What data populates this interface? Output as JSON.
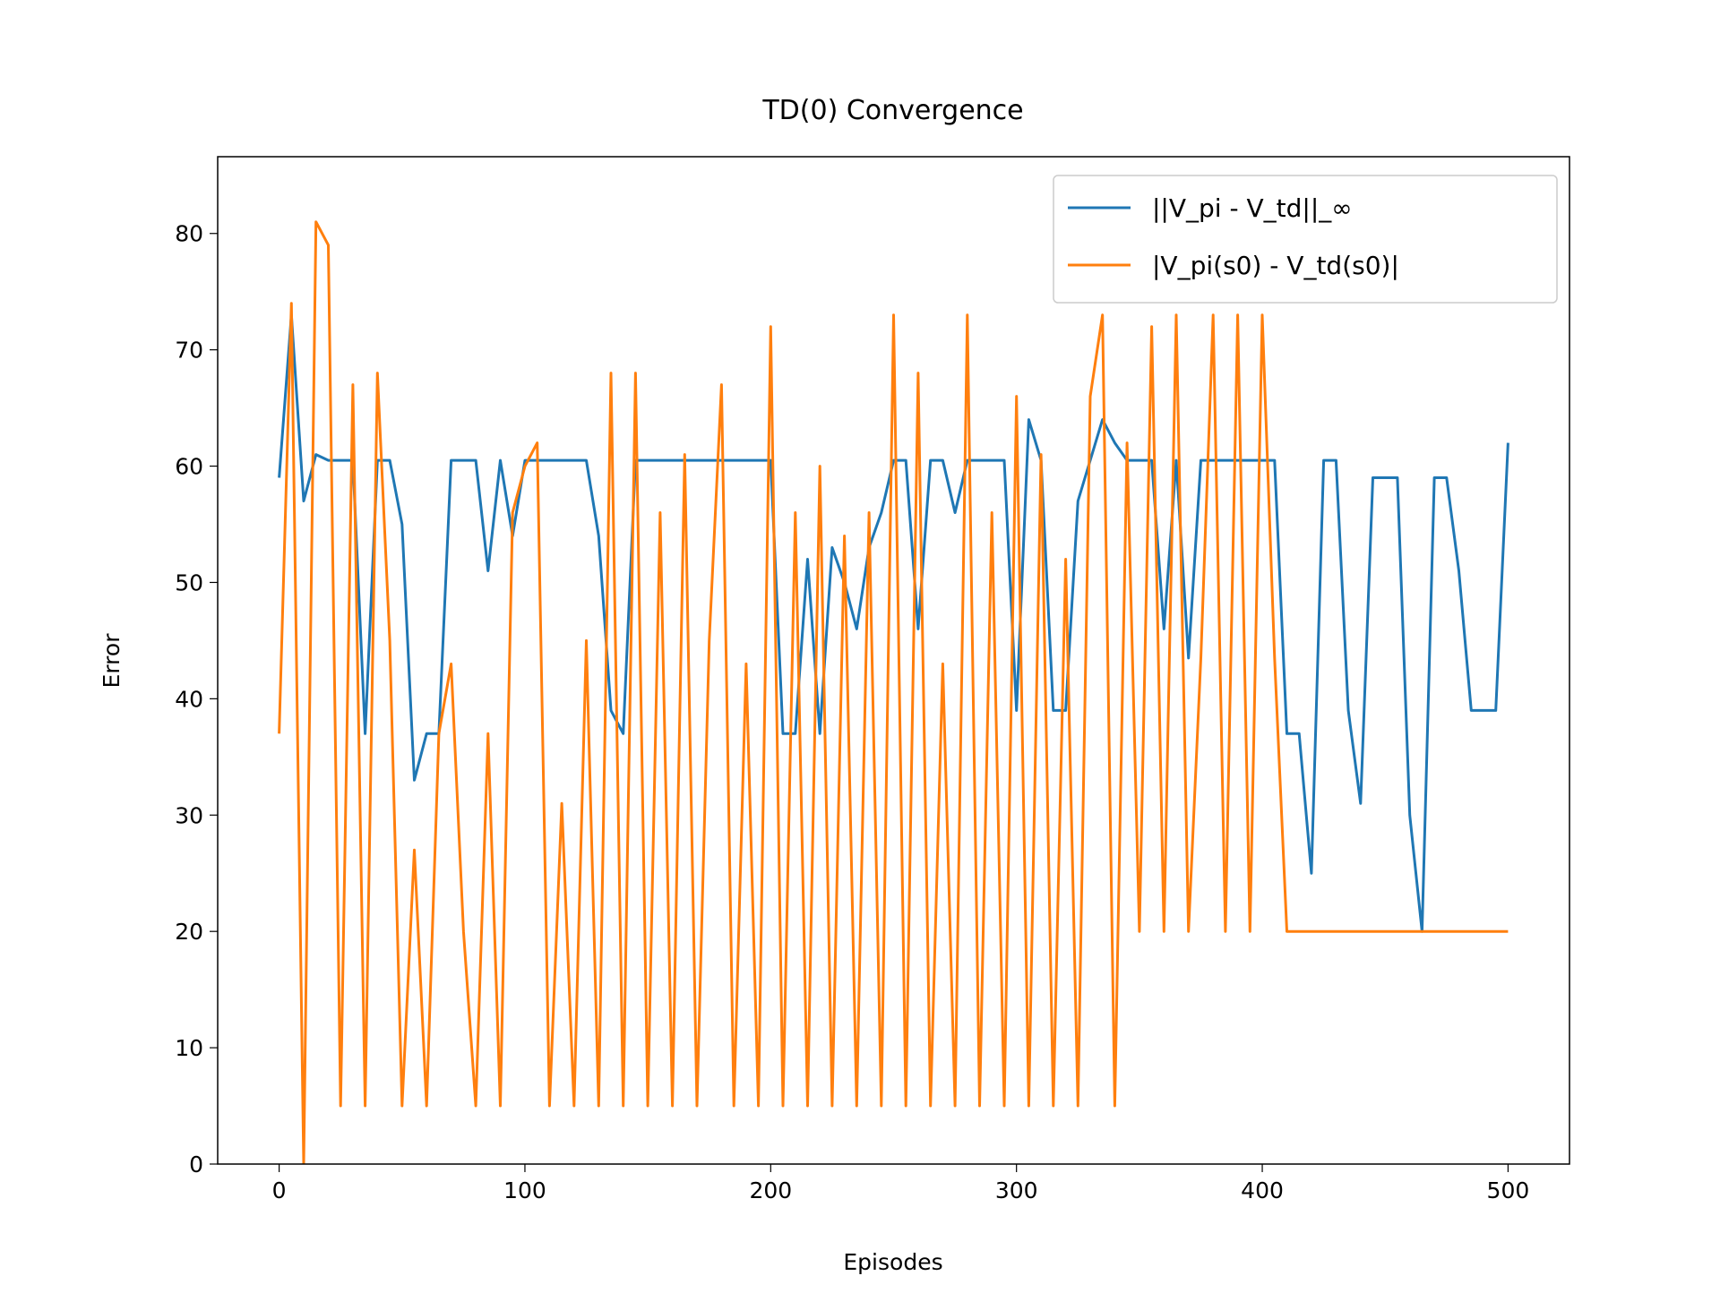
{
  "chart_data": {
    "type": "line",
    "title": "TD(0) Convergence",
    "x_label": "Episodes",
    "y_label": "Error",
    "x": [
      0,
      5,
      10,
      15,
      20,
      25,
      30,
      35,
      40,
      45,
      50,
      55,
      60,
      65,
      70,
      75,
      80,
      85,
      90,
      95,
      100,
      105,
      110,
      115,
      120,
      125,
      130,
      135,
      140,
      145,
      150,
      155,
      160,
      165,
      170,
      175,
      180,
      185,
      190,
      195,
      200,
      205,
      210,
      215,
      220,
      225,
      230,
      235,
      240,
      245,
      250,
      255,
      260,
      265,
      270,
      275,
      280,
      285,
      290,
      295,
      300,
      305,
      310,
      315,
      320,
      325,
      330,
      335,
      340,
      345,
      350,
      355,
      360,
      365,
      370,
      375,
      380,
      385,
      390,
      395,
      400,
      405,
      410,
      415,
      420,
      425,
      430,
      435,
      440,
      445,
      450,
      455,
      460,
      465,
      470,
      475,
      480,
      485,
      490,
      495,
      500
    ],
    "series": [
      {
        "name": "||V_pi - V_td||_∞",
        "color": "#1f77b4",
        "values": [
          59,
          73,
          57,
          61,
          60.5,
          60.5,
          60.5,
          37,
          60.5,
          60.5,
          55,
          33,
          37,
          37,
          60.5,
          60.5,
          60.5,
          51,
          60.5,
          54,
          60.5,
          60.5,
          60.5,
          60.5,
          60.5,
          60.5,
          54,
          39,
          37,
          60.5,
          60.5,
          60.5,
          60.5,
          60.5,
          60.5,
          60.5,
          60.5,
          60.5,
          60.5,
          60.5,
          60.5,
          37,
          37,
          52,
          37,
          53,
          50,
          46,
          53,
          56,
          60.5,
          60.5,
          46,
          60.5,
          60.5,
          56,
          60.5,
          60.5,
          60.5,
          60.5,
          39,
          64,
          60.5,
          39,
          39,
          57,
          60.5,
          64,
          62,
          60.5,
          60.5,
          60.5,
          46,
          60.5,
          43.5,
          60.5,
          60.5,
          60.5,
          60.5,
          60.5,
          60.5,
          60.5,
          37,
          37,
          25,
          60.5,
          60.5,
          39,
          31,
          59,
          59,
          59,
          30,
          20,
          59,
          59,
          51,
          39,
          39,
          39,
          62
        ]
      },
      {
        "name": "|V_pi(s0) - V_td(s0)|",
        "color": "#ff7f0e",
        "values": [
          37,
          74,
          0,
          81,
          79,
          5,
          67,
          5,
          68,
          45,
          5,
          27,
          5,
          37,
          43,
          20,
          5,
          37,
          5,
          56,
          60,
          62,
          5,
          31,
          5,
          45,
          5,
          68,
          5,
          68,
          5,
          56,
          5,
          61,
          5,
          45,
          67,
          5,
          43,
          5,
          72,
          5,
          56,
          5,
          60,
          5,
          54,
          5,
          56,
          5,
          73,
          5,
          68,
          5,
          43,
          5,
          73,
          5,
          56,
          5,
          66,
          5,
          61,
          5,
          52,
          5,
          66,
          73,
          5,
          62,
          20,
          72,
          20,
          73,
          20,
          43.5,
          73,
          20,
          73,
          20,
          73,
          43.5,
          20,
          20,
          20,
          20,
          20,
          20,
          20,
          20,
          20,
          20,
          20,
          20,
          20,
          20,
          20,
          20,
          20,
          20,
          20
        ]
      }
    ],
    "xlim": [
      -25,
      525
    ],
    "xticks": [
      0,
      100,
      200,
      300,
      400,
      500
    ],
    "ylim": [
      0,
      86.6
    ],
    "yticks": [
      0,
      10,
      20,
      30,
      40,
      50,
      60,
      70,
      80
    ],
    "legend": "upper right"
  }
}
